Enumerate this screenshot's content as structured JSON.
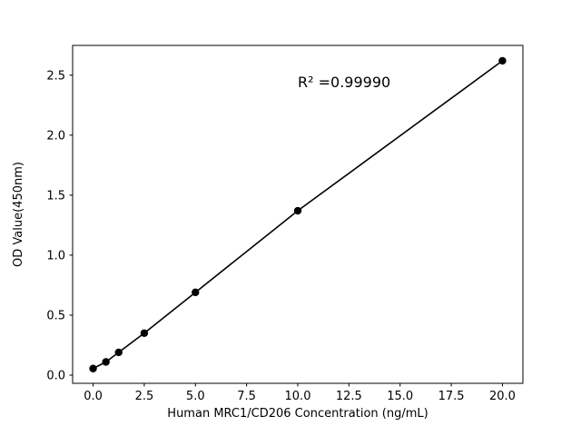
{
  "chart_data": {
    "type": "scatter",
    "series_name": "standard-curve",
    "title": "",
    "xlabel": "Human MRC1/CD206 Concentration (ng/mL)",
    "ylabel": "OD Value(450nm)",
    "x": [
      0,
      0.625,
      1.25,
      2.5,
      5,
      10,
      20
    ],
    "y": [
      0.055,
      0.11,
      0.19,
      0.35,
      0.69,
      1.37,
      2.62
    ],
    "xlim": [
      -1,
      21
    ],
    "ylim": [
      -0.068,
      2.748
    ],
    "xticks": [
      0.0,
      2.5,
      5.0,
      7.5,
      10.0,
      12.5,
      15.0,
      17.5,
      20.0
    ],
    "xtick_labels": [
      "0.0",
      "2.5",
      "5.0",
      "7.5",
      "10.0",
      "12.5",
      "15.0",
      "17.5",
      "20.0"
    ],
    "yticks": [
      0.0,
      0.5,
      1.0,
      1.5,
      2.0,
      2.5
    ],
    "ytick_labels": [
      "0.0",
      "0.5",
      "1.0",
      "1.5",
      "2.0",
      "2.5"
    ],
    "grid": false,
    "legend": "none",
    "line_color": "#000000",
    "marker_color": "#000000",
    "background_color": "#ffffff",
    "annotation": {
      "text": "R² =0.99990",
      "x": 10,
      "y": 2.4
    }
  }
}
